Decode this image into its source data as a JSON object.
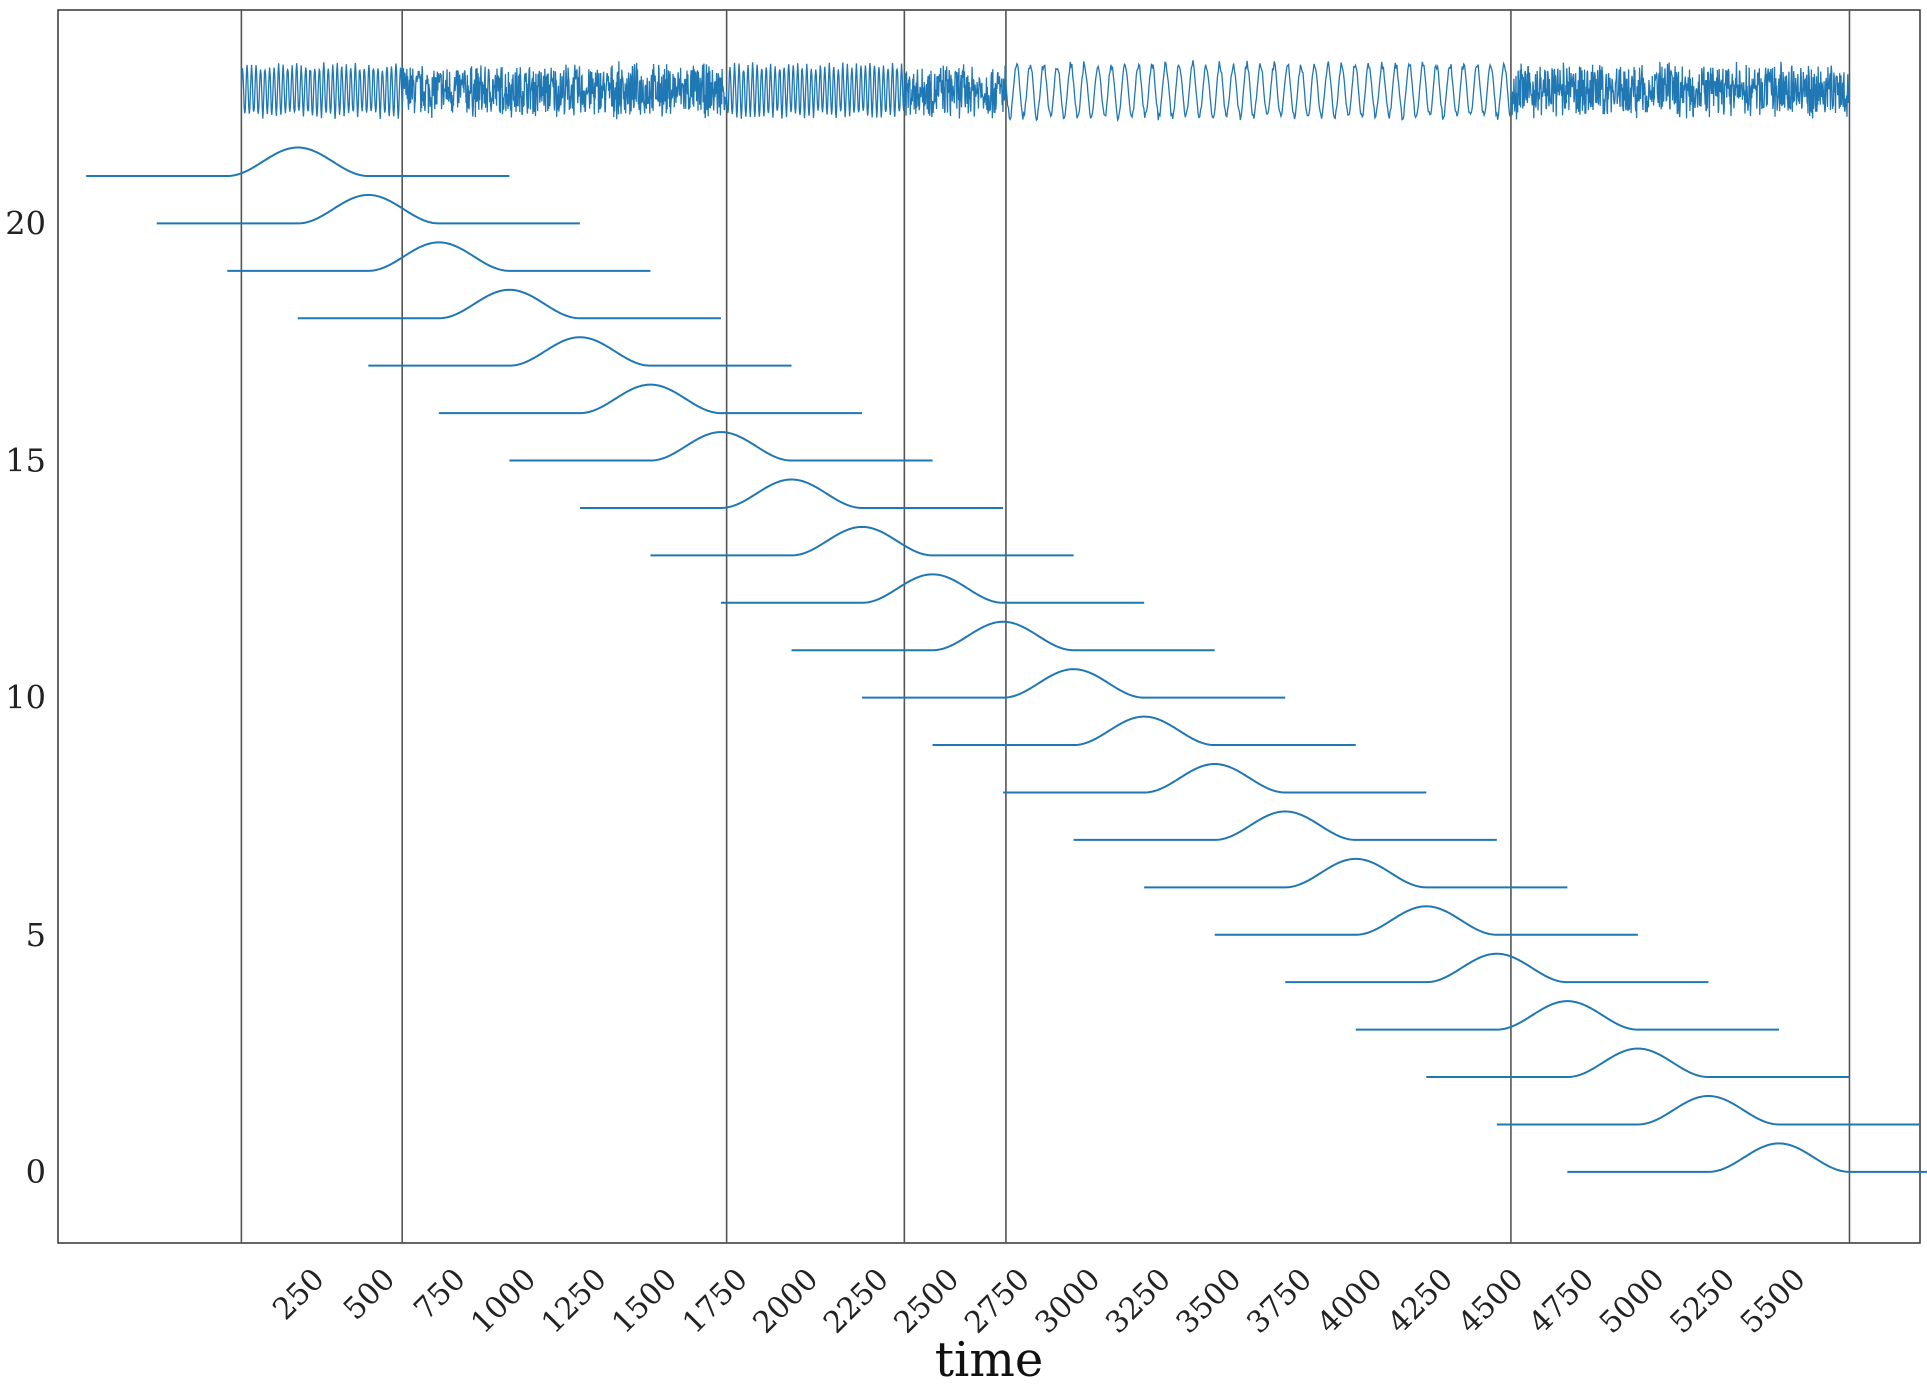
{
  "chart_data": {
    "type": "line",
    "title": "",
    "xlabel": "time",
    "ylabel": "",
    "xlim": [
      -650,
      5950
    ],
    "ylim": [
      -1.5,
      24.5
    ],
    "grid": false,
    "legend": "none",
    "colors": {
      "line": "#1f77b4",
      "boundary": "#555555",
      "axes": "#333333",
      "text": "#222222"
    },
    "x_ticks": [
      250,
      500,
      750,
      1000,
      1250,
      1500,
      1750,
      2000,
      2250,
      2500,
      2750,
      3000,
      3250,
      3500,
      3750,
      4000,
      4250,
      4500,
      4750,
      5000,
      5250,
      5500
    ],
    "x_tick_labels": [
      "250",
      "500",
      "750",
      "1000",
      "1250",
      "1500",
      "1750",
      "2000",
      "2250",
      "2500",
      "2750",
      "3000",
      "3250",
      "3500",
      "3750",
      "4000",
      "4250",
      "4500",
      "4750",
      "5000",
      "5250",
      "5500"
    ],
    "y_ticks": [
      0,
      5,
      10,
      15,
      20
    ],
    "y_tick_labels": [
      "0",
      "5",
      "10",
      "15",
      "20"
    ],
    "segment_boundaries": [
      0,
      570,
      1720,
      2350,
      2710,
      4500,
      5700
    ],
    "signal": {
      "baseline_y": 22.8,
      "x_start": 0,
      "x_end": 5700,
      "segments": [
        {
          "from": 0,
          "to": 570,
          "density": "medium"
        },
        {
          "from": 570,
          "to": 1720,
          "density": "high"
        },
        {
          "from": 1720,
          "to": 2350,
          "density": "medium"
        },
        {
          "from": 2350,
          "to": 2710,
          "density": "high"
        },
        {
          "from": 2710,
          "to": 4500,
          "density": "low"
        },
        {
          "from": 4500,
          "to": 5700,
          "density": "high"
        }
      ]
    },
    "windows": [
      {
        "index": 0,
        "start": 4700,
        "end": 6200,
        "peak": 5450
      },
      {
        "index": 1,
        "start": 4450,
        "end": 5950,
        "peak": 5200
      },
      {
        "index": 2,
        "start": 4200,
        "end": 5700,
        "peak": 4950
      },
      {
        "index": 3,
        "start": 3950,
        "end": 5450,
        "peak": 4700
      },
      {
        "index": 4,
        "start": 3700,
        "end": 5200,
        "peak": 4450
      },
      {
        "index": 5,
        "start": 3450,
        "end": 4950,
        "peak": 4200
      },
      {
        "index": 6,
        "start": 3200,
        "end": 4700,
        "peak": 3950
      },
      {
        "index": 7,
        "start": 2950,
        "end": 4450,
        "peak": 3700
      },
      {
        "index": 8,
        "start": 2700,
        "end": 4200,
        "peak": 3450
      },
      {
        "index": 9,
        "start": 2450,
        "end": 3950,
        "peak": 3200
      },
      {
        "index": 10,
        "start": 2200,
        "end": 3700,
        "peak": 2950
      },
      {
        "index": 11,
        "start": 1950,
        "end": 3450,
        "peak": 2700
      },
      {
        "index": 12,
        "start": 1700,
        "end": 3200,
        "peak": 2450
      },
      {
        "index": 13,
        "start": 1450,
        "end": 2950,
        "peak": 2200
      },
      {
        "index": 14,
        "start": 1200,
        "end": 2700,
        "peak": 1950
      },
      {
        "index": 15,
        "start": 950,
        "end": 2450,
        "peak": 1700
      },
      {
        "index": 16,
        "start": 700,
        "end": 2200,
        "peak": 1450
      },
      {
        "index": 17,
        "start": 450,
        "end": 1950,
        "peak": 1200
      },
      {
        "index": 18,
        "start": 200,
        "end": 1700,
        "peak": 950
      },
      {
        "index": 19,
        "start": -50,
        "end": 1450,
        "peak": 700
      },
      {
        "index": 20,
        "start": -300,
        "end": 1200,
        "peak": 450
      },
      {
        "index": 21,
        "start": -550,
        "end": 950,
        "peak": 200
      }
    ],
    "window_bump_height": 0.6,
    "window_bump_halfwidth": 250
  }
}
